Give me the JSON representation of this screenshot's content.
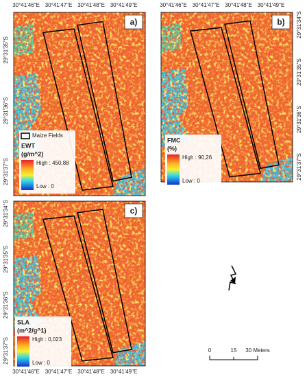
{
  "panels": [
    {
      "label": "a)",
      "lon_top": [
        "30°41'46\"E",
        "30°41'47\"E",
        "30°41'48\"E",
        "30°41'49\"E"
      ],
      "lat_left": [
        "29°31'35\"S",
        "29°31'36\"S",
        "29°31'37\"S"
      ],
      "fields_label": "Maize Fields",
      "legend": {
        "title": "EWT",
        "unit": "(g/m^2)",
        "high": "High : 450,88",
        "low": "Low : 0"
      }
    },
    {
      "label": "b)",
      "lon_top": [
        "30°41'46\"E",
        "30°41'47\"E",
        "30°41'48\"E",
        "30°41'49\"E"
      ],
      "lat_right": [
        "29°31'34\"S",
        "29°31'35\"S",
        "29°31'36\"S",
        "29°31'37\"S"
      ],
      "legend": {
        "title": "FMC",
        "unit": "(%)",
        "high": "High : 90,26",
        "low": "Low : 0"
      }
    },
    {
      "label": "c)",
      "lon_bottom": [
        "30°41'46\"E",
        "30°41'47\"E",
        "30°41'48\"E",
        "30°41'49\"E"
      ],
      "lat_left": [
        "29°31'34\"S",
        "29°31'35\"S",
        "29°31'36\"S",
        "29°31'37\"S"
      ],
      "legend": {
        "title": "SLA",
        "unit": "(m^2/g^1)",
        "high": "High : 0,023",
        "low": "Low : 0"
      }
    }
  ],
  "scale_bar": {
    "labels": [
      "0",
      "15",
      "30 Meters"
    ]
  }
}
